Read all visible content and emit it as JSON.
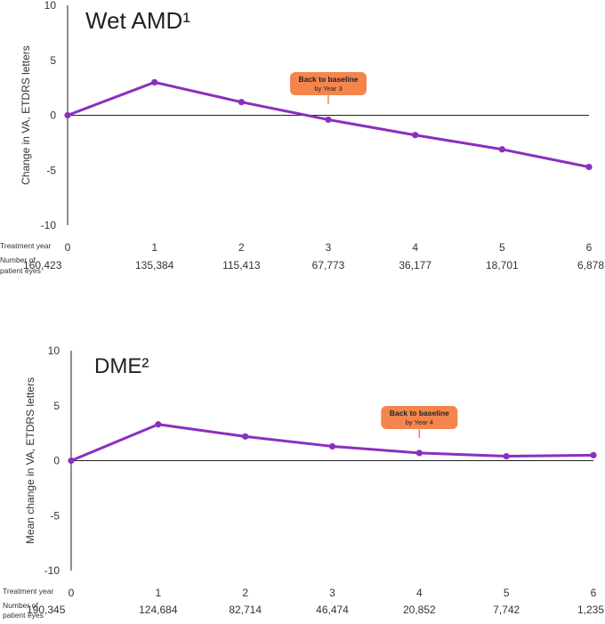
{
  "chart_data": [
    {
      "type": "line",
      "title": "Wet AMD¹",
      "ylabel": "Change in VA, ETDRS letters",
      "ylim": [
        -10,
        10
      ],
      "yticks": [
        10,
        5,
        0,
        -5,
        -10
      ],
      "x": [
        0,
        1,
        2,
        3,
        4,
        5,
        6
      ],
      "values": [
        0,
        3.0,
        1.2,
        -0.4,
        -1.8,
        -3.1,
        -4.7
      ],
      "row_labels": {
        "treatment_year": "Treatment year",
        "patient_eyes_line1": "Number of",
        "patient_eyes_line2": "patient eyes"
      },
      "patient_eyes": [
        "160,423",
        "135,384",
        "115,413",
        "67,773",
        "36,177",
        "18,701",
        "6,878"
      ],
      "callout": {
        "title": "Back to baseline",
        "subtitle": "by Year 3",
        "color": "#f4854d"
      },
      "line_color": "#8a2fc0"
    },
    {
      "type": "line",
      "title": "DME²",
      "ylabel": "Mean change in VA, ETDRS letters",
      "ylim": [
        -10,
        10
      ],
      "yticks": [
        10,
        5,
        0,
        -5,
        -10
      ],
      "x": [
        0,
        1,
        2,
        3,
        4,
        5,
        6
      ],
      "values": [
        0,
        3.3,
        2.2,
        1.3,
        0.7,
        0.4,
        0.5
      ],
      "row_labels": {
        "treatment_year": "Treatment year",
        "patient_eyes_line1": "Number of",
        "patient_eyes_line2": "patient eyes"
      },
      "patient_eyes": [
        "190,345",
        "124,684",
        "82,714",
        "46,474",
        "20,852",
        "7,742",
        "1,235"
      ],
      "callout": {
        "title": "Back to baseline",
        "subtitle": "by Year 4",
        "color": "#f4854d"
      },
      "line_color": "#8a2fc0"
    }
  ]
}
